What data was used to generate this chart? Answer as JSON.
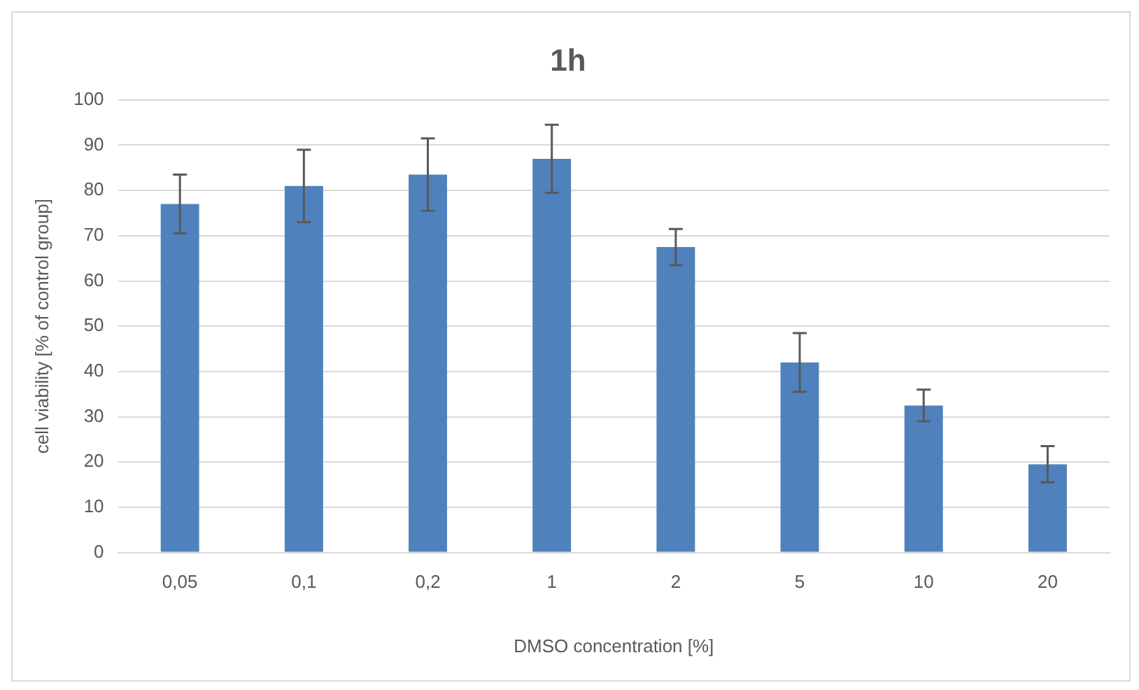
{
  "chart_data": {
    "type": "bar",
    "title": "1h",
    "xlabel": "DMSO concentration [%]",
    "ylabel": "cell viability [% of control group]",
    "categories": [
      "0,05",
      "0,1",
      "0,2",
      "1",
      "2",
      "5",
      "10",
      "20"
    ],
    "values": [
      77,
      81,
      83.5,
      87,
      67.5,
      42,
      32.5,
      19.5
    ],
    "errors": [
      6.5,
      8,
      8,
      7.5,
      4,
      6.5,
      3.5,
      4
    ],
    "color": "#4f81bd",
    "ylim": [
      0,
      100
    ],
    "yticks": [
      0,
      10,
      20,
      30,
      40,
      50,
      60,
      70,
      80,
      90,
      100
    ],
    "grid": "y",
    "legend": false
  }
}
